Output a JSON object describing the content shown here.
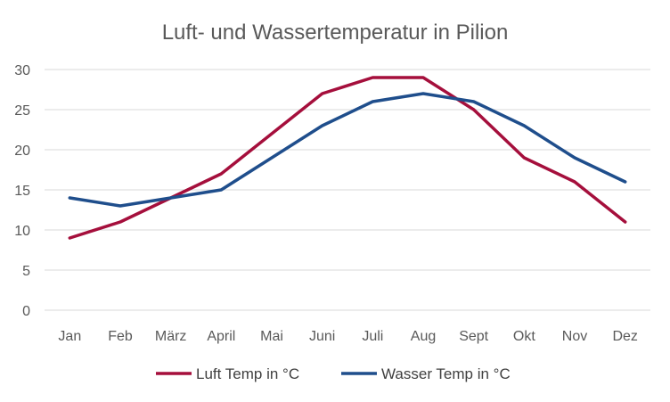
{
  "chart_data": {
    "type": "line",
    "title": "Luft- und Wassertemperatur in Pilion",
    "categories": [
      "Jan",
      "Feb",
      "März",
      "April",
      "Mai",
      "Juni",
      "Juli",
      "Aug",
      "Sept",
      "Okt",
      "Nov",
      "Dez"
    ],
    "series": [
      {
        "name": "Luft Temp in °C",
        "color": "#a50f3c",
        "values": [
          9,
          11,
          14,
          17,
          22,
          27,
          29,
          29,
          25,
          19,
          16,
          11
        ]
      },
      {
        "name": "Wasser Temp in °C",
        "color": "#1f4e8c",
        "values": [
          14,
          13,
          14,
          15,
          19,
          23,
          26,
          27,
          26,
          23,
          19,
          16
        ]
      }
    ],
    "ylim": [
      0,
      30
    ],
    "yticks": [
      "0",
      "5",
      "10",
      "15",
      "20",
      "25",
      "30"
    ],
    "xlabel": "",
    "ylabel": "",
    "grid": true,
    "legend_position": "bottom"
  }
}
